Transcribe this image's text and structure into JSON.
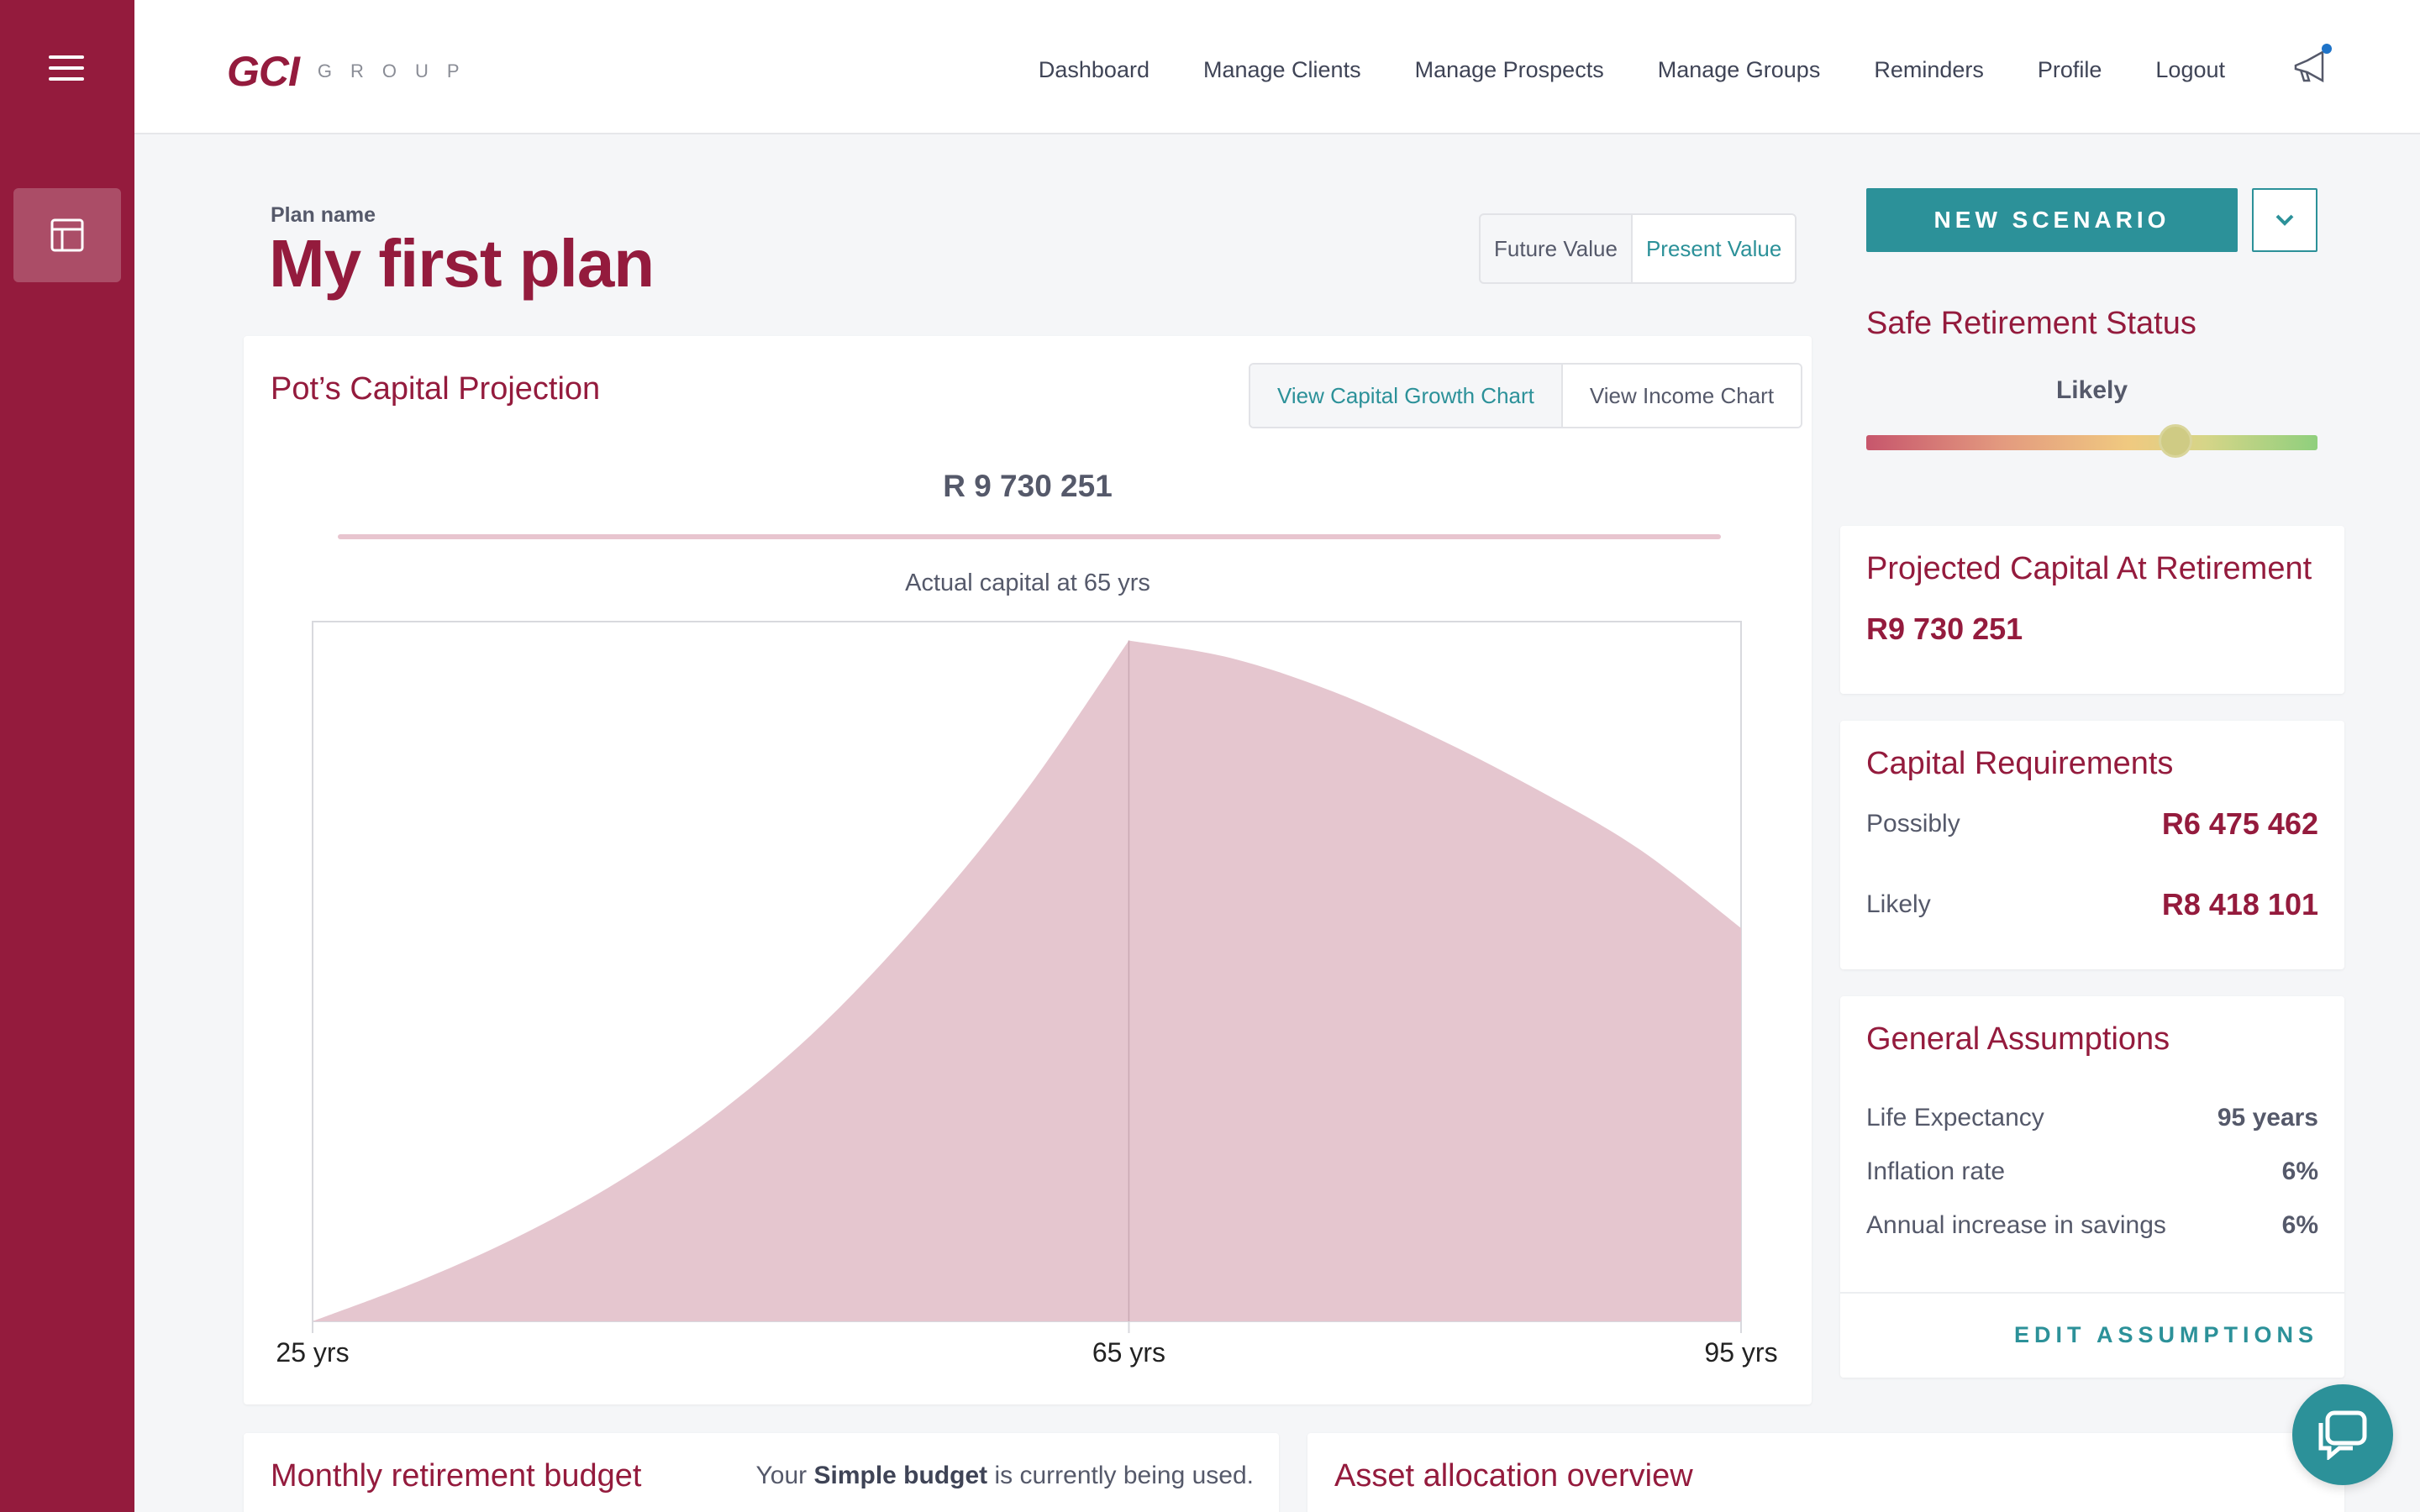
{
  "brand": {
    "logo_mark": "GCI",
    "logo_word": "GROUP",
    "primary_color": "#941b3d",
    "accent_color": "#2c9199"
  },
  "nav": {
    "items": [
      "Dashboard",
      "Manage Clients",
      "Manage Prospects",
      "Manage Groups",
      "Reminders",
      "Profile",
      "Logout"
    ],
    "notification_icon": "megaphone-icon"
  },
  "sidebar": {
    "menu_icon": "hamburger-icon",
    "items": [
      {
        "icon": "layout-icon",
        "active": true
      }
    ]
  },
  "plan": {
    "label": "Plan name",
    "title": "My first plan",
    "value_toggle": {
      "options": [
        "Future Value",
        "Present Value"
      ],
      "selected": "Present Value"
    }
  },
  "projection": {
    "title": "Pot’s Capital Projection",
    "tabs": [
      "View Capital Growth Chart",
      "View Income Chart"
    ],
    "selected_tab": "View Capital Growth Chart",
    "headline_value": "R 9 730 251",
    "subtitle": "Actual capital at 65 yrs"
  },
  "chart_data": {
    "type": "area",
    "title": "",
    "xlabel": "",
    "ylabel": "",
    "x_tick_labels": [
      "25 yrs",
      "65 yrs",
      "95 yrs"
    ],
    "x": [
      25,
      30,
      35,
      40,
      45,
      50,
      55,
      60,
      65,
      70,
      75,
      80,
      85,
      90,
      95
    ],
    "values": [
      0,
      550000,
      1200000,
      2000000,
      3000000,
      4250000,
      5800000,
      7600000,
      9730251,
      9480000,
      9000000,
      8350000,
      7600000,
      6750000,
      5620000
    ],
    "ylim": [
      0,
      10000000
    ],
    "xlim": [
      25,
      95
    ],
    "marker_x": 65,
    "color": "#e5c6cf",
    "grid": false
  },
  "right": {
    "new_scenario": "NEW SCENARIO",
    "dropdown_icon": "chevron-down-icon",
    "safe_status": {
      "title": "Safe Retirement Status",
      "level": "Likely",
      "position": 0.685
    },
    "projected_capital": {
      "title": "Projected Capital At Retirement",
      "value": "R9 730 251"
    },
    "capital_requirements": {
      "title": "Capital Requirements",
      "rows": [
        {
          "label": "Possibly",
          "value": "R6 475 462"
        },
        {
          "label": "Likely",
          "value": "R8 418 101"
        }
      ]
    },
    "assumptions": {
      "title": "General Assumptions",
      "rows": [
        {
          "label": "Life Expectancy",
          "value": "95 years"
        },
        {
          "label": "Inflation rate",
          "value": "6%"
        },
        {
          "label": "Annual increase in savings",
          "value": "6%"
        }
      ],
      "edit": "EDIT ASSUMPTIONS"
    }
  },
  "bottom": {
    "budget_title": "Monthly retirement budget",
    "budget_note_prefix": "Your",
    "budget_note_bold": "Simple budget",
    "budget_note_suffix": "is currently being used.",
    "asset_title": "Asset allocation overview"
  },
  "chat": {
    "icon": "chat-icon"
  }
}
